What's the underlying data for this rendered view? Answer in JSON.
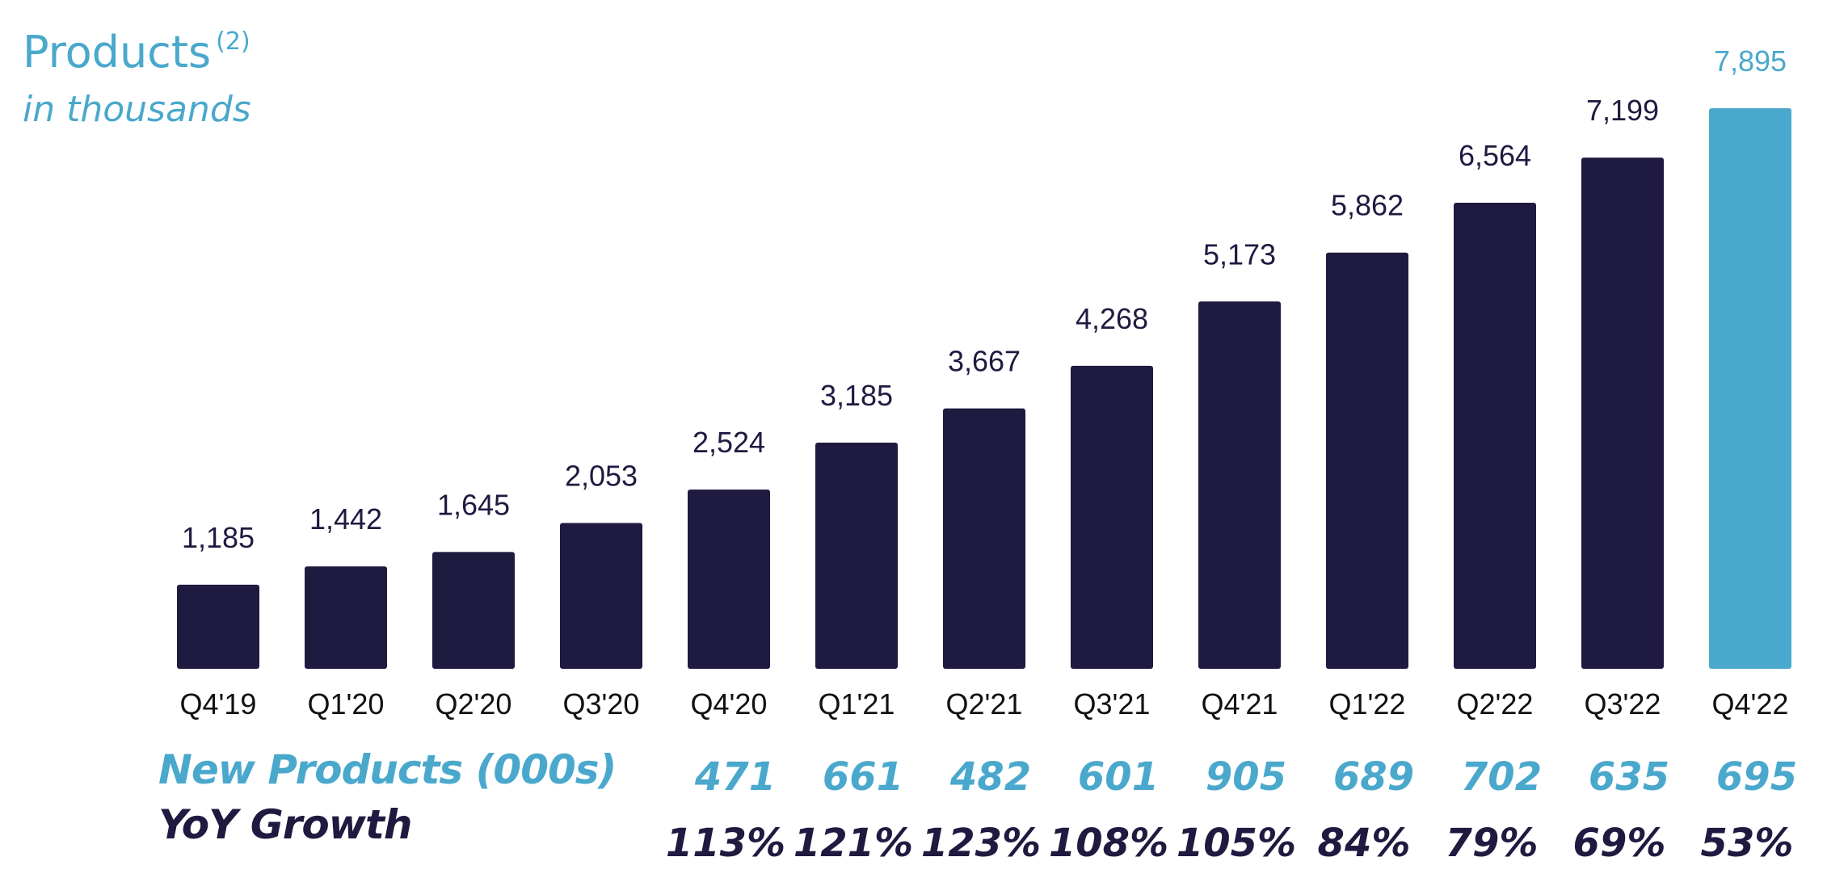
{
  "chart_data": {
    "type": "bar",
    "title": "Products",
    "title_superscript": "(2)",
    "subtitle": "in thousands",
    "categories": [
      "Q4'19",
      "Q1'20",
      "Q2'20",
      "Q3'20",
      "Q4'20",
      "Q1'21",
      "Q2'21",
      "Q3'21",
      "Q4'21",
      "Q1'22",
      "Q2'22",
      "Q3'22",
      "Q4'22"
    ],
    "values": [
      1185,
      1442,
      1645,
      2053,
      2524,
      3185,
      3667,
      4268,
      5173,
      5862,
      6564,
      7199,
      7895
    ],
    "value_labels": [
      "1,185",
      "1,442",
      "1,645",
      "2,053",
      "2,524",
      "3,185",
      "3,667",
      "4,268",
      "5,173",
      "5,862",
      "6,564",
      "7,199",
      "7,895"
    ],
    "highlight_index": 12,
    "colors": {
      "bar": "#1f1a40",
      "highlight": "#4aa8cc"
    },
    "ylim": [
      0,
      7895
    ],
    "grid": false,
    "xlabel": "",
    "ylabel": ""
  },
  "table": {
    "new_products_label": "New Products (000s)",
    "yoy_growth_label": "YoY Growth",
    "columns": [
      "Q4'20",
      "Q1'21",
      "Q2'21",
      "Q3'21",
      "Q4'21",
      "Q1'22",
      "Q2'22",
      "Q3'22",
      "Q4'22"
    ],
    "new_products": [
      "471",
      "661",
      "482",
      "601",
      "905",
      "689",
      "702",
      "635",
      "695"
    ],
    "yoy_growth": [
      "113%",
      "121%",
      "123%",
      "108%",
      "105%",
      "84%",
      "79%",
      "69%",
      "53%"
    ]
  }
}
